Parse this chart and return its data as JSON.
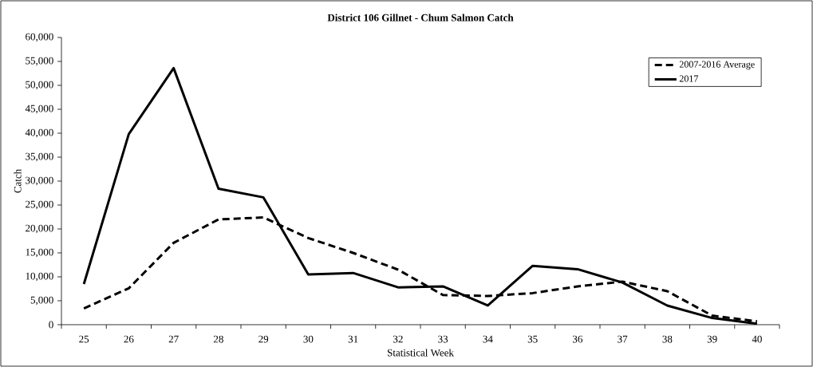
{
  "chart_data": {
    "type": "line",
    "title": "District 106 Gillnet - Chum Salmon Catch",
    "xlabel": "Statistical Week",
    "ylabel": "Catch",
    "categories": [
      "25",
      "26",
      "27",
      "28",
      "29",
      "30",
      "31",
      "32",
      "33",
      "34",
      "35",
      "36",
      "37",
      "38",
      "39",
      "40"
    ],
    "series": [
      {
        "name": "2007-2016 Average",
        "color": "#000000",
        "line_style": "dashed",
        "values": [
          3400,
          7600,
          17100,
          22000,
          22400,
          18100,
          15000,
          11500,
          6200,
          6000,
          6600,
          8000,
          9000,
          7000,
          1900,
          700
        ]
      },
      {
        "name": "2017",
        "color": "#000000",
        "line_style": "solid",
        "values": [
          8500,
          39800,
          53600,
          28400,
          26600,
          10500,
          10800,
          7800,
          8000,
          4000,
          12300,
          11600,
          8800,
          4000,
          1400,
          200
        ]
      }
    ],
    "ylim": [
      0,
      60000
    ],
    "yticks": [
      {
        "value": 0,
        "label": "0"
      },
      {
        "value": 5000,
        "label": "5,000"
      },
      {
        "value": 10000,
        "label": "10,000"
      },
      {
        "value": 15000,
        "label": "15,000"
      },
      {
        "value": 20000,
        "label": "20,000"
      },
      {
        "value": 25000,
        "label": "25,000"
      },
      {
        "value": 30000,
        "label": "30,000"
      },
      {
        "value": 35000,
        "label": "35,000"
      },
      {
        "value": 40000,
        "label": "40,000"
      },
      {
        "value": 45000,
        "label": "45,000"
      },
      {
        "value": 50000,
        "label": "50,000"
      },
      {
        "value": 55000,
        "label": "55,000"
      },
      {
        "value": 60000,
        "label": "60,000"
      }
    ],
    "legend": "top right",
    "grid": false
  }
}
